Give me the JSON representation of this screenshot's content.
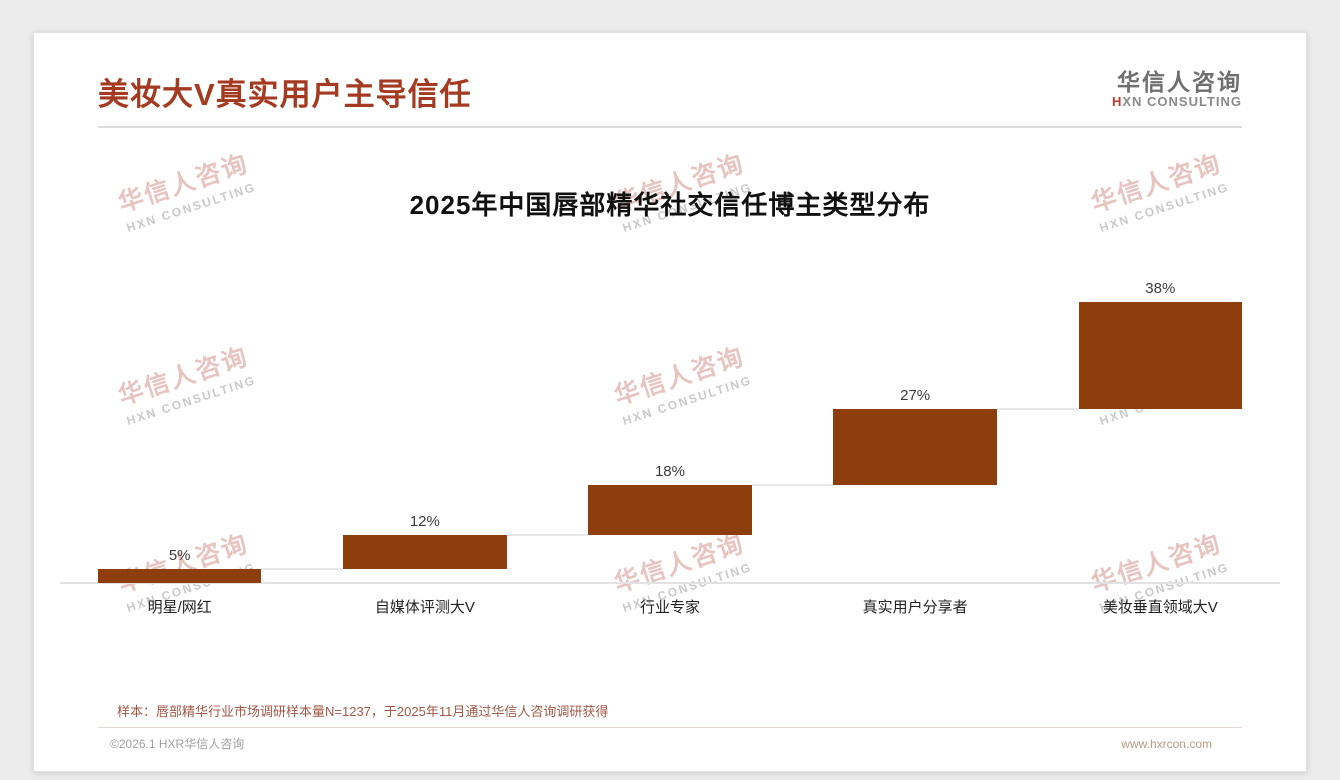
{
  "header": {
    "title": "美妆大V真实用户主导信任",
    "logo_cn": "华信人咨询",
    "logo_en_h": "H",
    "logo_en_rest": "XN CONSULTING"
  },
  "watermark": {
    "cn": "华信人咨询",
    "en": "HXN CONSULTING"
  },
  "chart_data": {
    "type": "bar",
    "variant": "waterfall-staircase",
    "title": "2025年中国唇部精华社交信任博主类型分布",
    "categories": [
      "明星/网红",
      "自媒体评测大V",
      "行业专家",
      "真实用户分享者",
      "美妆垂直领域大V"
    ],
    "values": [
      5,
      12,
      18,
      27,
      38
    ],
    "labels": [
      "5%",
      "12%",
      "18%",
      "27%",
      "38%"
    ],
    "cumulative_start": [
      0,
      5,
      17,
      35,
      62
    ],
    "unit": "%",
    "ylim": [
      0,
      100
    ],
    "bar_color": "#8E3D0D",
    "grid": false,
    "legend": false
  },
  "footnote": {
    "text": "样本：唇部精华行业市场调研样本量N=1237，于2025年11月通过华信人咨询调研获得"
  },
  "footer": {
    "left": "©2026.1 HXR华信人咨询",
    "right": "www.hxrcon.com"
  },
  "colors": {
    "accent": "#A43A20",
    "bar": "#8E3D0D",
    "footnote": "#A15846",
    "watermark_pink": "#CD7D73"
  }
}
